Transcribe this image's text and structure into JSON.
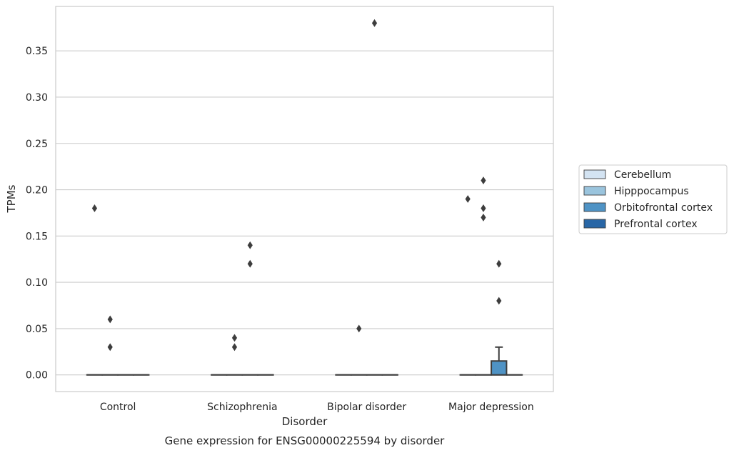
{
  "chart_data": {
    "type": "box",
    "title": "Gene expression for ENSG00000225594 by disorder",
    "xlabel": "Disorder",
    "ylabel": "TPMs",
    "ylim": [
      -0.018,
      0.398
    ],
    "yticks": [
      "0.00",
      "0.05",
      "0.10",
      "0.15",
      "0.20",
      "0.25",
      "0.30",
      "0.35"
    ],
    "grid": "horizontal",
    "legend_position": "right",
    "categories": [
      "Control",
      "Schizophrenia",
      "Bipolar disorder",
      "Major depression"
    ],
    "series": [
      {
        "name": "Cerebellum",
        "color": "#d3e3f2"
      },
      {
        "name": "Hipppocampus",
        "color": "#9ac4dd"
      },
      {
        "name": "Orbitofrontal cortex",
        "color": "#4f93c5"
      },
      {
        "name": "Prefrontal cortex",
        "color": "#2866a6"
      }
    ],
    "boxes": [
      {
        "category": "Control",
        "series": "Cerebellum",
        "q1": 0,
        "median": 0,
        "q3": 0,
        "whislo": 0,
        "whishi": 0
      },
      {
        "category": "Control",
        "series": "Hipppocampus",
        "q1": 0,
        "median": 0,
        "q3": 0,
        "whislo": 0,
        "whishi": 0
      },
      {
        "category": "Control",
        "series": "Orbitofrontal cortex",
        "q1": 0,
        "median": 0,
        "q3": 0,
        "whislo": 0,
        "whishi": 0
      },
      {
        "category": "Control",
        "series": "Prefrontal cortex",
        "q1": 0,
        "median": 0,
        "q3": 0,
        "whislo": 0,
        "whishi": 0
      },
      {
        "category": "Schizophrenia",
        "series": "Cerebellum",
        "q1": 0,
        "median": 0,
        "q3": 0,
        "whislo": 0,
        "whishi": 0
      },
      {
        "category": "Schizophrenia",
        "series": "Hipppocampus",
        "q1": 0,
        "median": 0,
        "q3": 0,
        "whislo": 0,
        "whishi": 0
      },
      {
        "category": "Schizophrenia",
        "series": "Orbitofrontal cortex",
        "q1": 0,
        "median": 0,
        "q3": 0,
        "whislo": 0,
        "whishi": 0
      },
      {
        "category": "Schizophrenia",
        "series": "Prefrontal cortex",
        "q1": 0,
        "median": 0,
        "q3": 0,
        "whislo": 0,
        "whishi": 0
      },
      {
        "category": "Bipolar disorder",
        "series": "Cerebellum",
        "q1": 0,
        "median": 0,
        "q3": 0,
        "whislo": 0,
        "whishi": 0
      },
      {
        "category": "Bipolar disorder",
        "series": "Hipppocampus",
        "q1": 0,
        "median": 0,
        "q3": 0,
        "whislo": 0,
        "whishi": 0
      },
      {
        "category": "Bipolar disorder",
        "series": "Orbitofrontal cortex",
        "q1": 0,
        "median": 0,
        "q3": 0,
        "whislo": 0,
        "whishi": 0
      },
      {
        "category": "Bipolar disorder",
        "series": "Prefrontal cortex",
        "q1": 0,
        "median": 0,
        "q3": 0,
        "whislo": 0,
        "whishi": 0
      },
      {
        "category": "Major depression",
        "series": "Cerebellum",
        "q1": 0,
        "median": 0,
        "q3": 0,
        "whislo": 0,
        "whishi": 0
      },
      {
        "category": "Major depression",
        "series": "Hipppocampus",
        "q1": 0,
        "median": 0,
        "q3": 0,
        "whislo": 0,
        "whishi": 0
      },
      {
        "category": "Major depression",
        "series": "Orbitofrontal cortex",
        "q1": 0,
        "median": 0,
        "q3": 0.015,
        "whislo": 0,
        "whishi": 0.03
      },
      {
        "category": "Major depression",
        "series": "Prefrontal cortex",
        "q1": 0,
        "median": 0,
        "q3": 0,
        "whislo": 0,
        "whishi": 0
      }
    ],
    "outliers": [
      {
        "category": "Control",
        "series": "Cerebellum",
        "values": [
          0.18
        ]
      },
      {
        "category": "Control",
        "series": "Hipppocampus",
        "values": [
          0.06,
          0.03
        ]
      },
      {
        "category": "Schizophrenia",
        "series": "Hipppocampus",
        "values": [
          0.04,
          0.03
        ]
      },
      {
        "category": "Schizophrenia",
        "series": "Orbitofrontal cortex",
        "values": [
          0.14,
          0.12
        ]
      },
      {
        "category": "Bipolar disorder",
        "series": "Hipppocampus",
        "values": [
          0.05
        ]
      },
      {
        "category": "Bipolar disorder",
        "series": "Orbitofrontal cortex",
        "values": [
          0.38
        ]
      },
      {
        "category": "Major depression",
        "series": "Cerebellum",
        "values": [
          0.19
        ]
      },
      {
        "category": "Major depression",
        "series": "Hipppocampus",
        "values": [
          0.21,
          0.18,
          0.17
        ]
      },
      {
        "category": "Major depression",
        "series": "Orbitofrontal cortex",
        "values": [
          0.12,
          0.08
        ]
      }
    ]
  }
}
